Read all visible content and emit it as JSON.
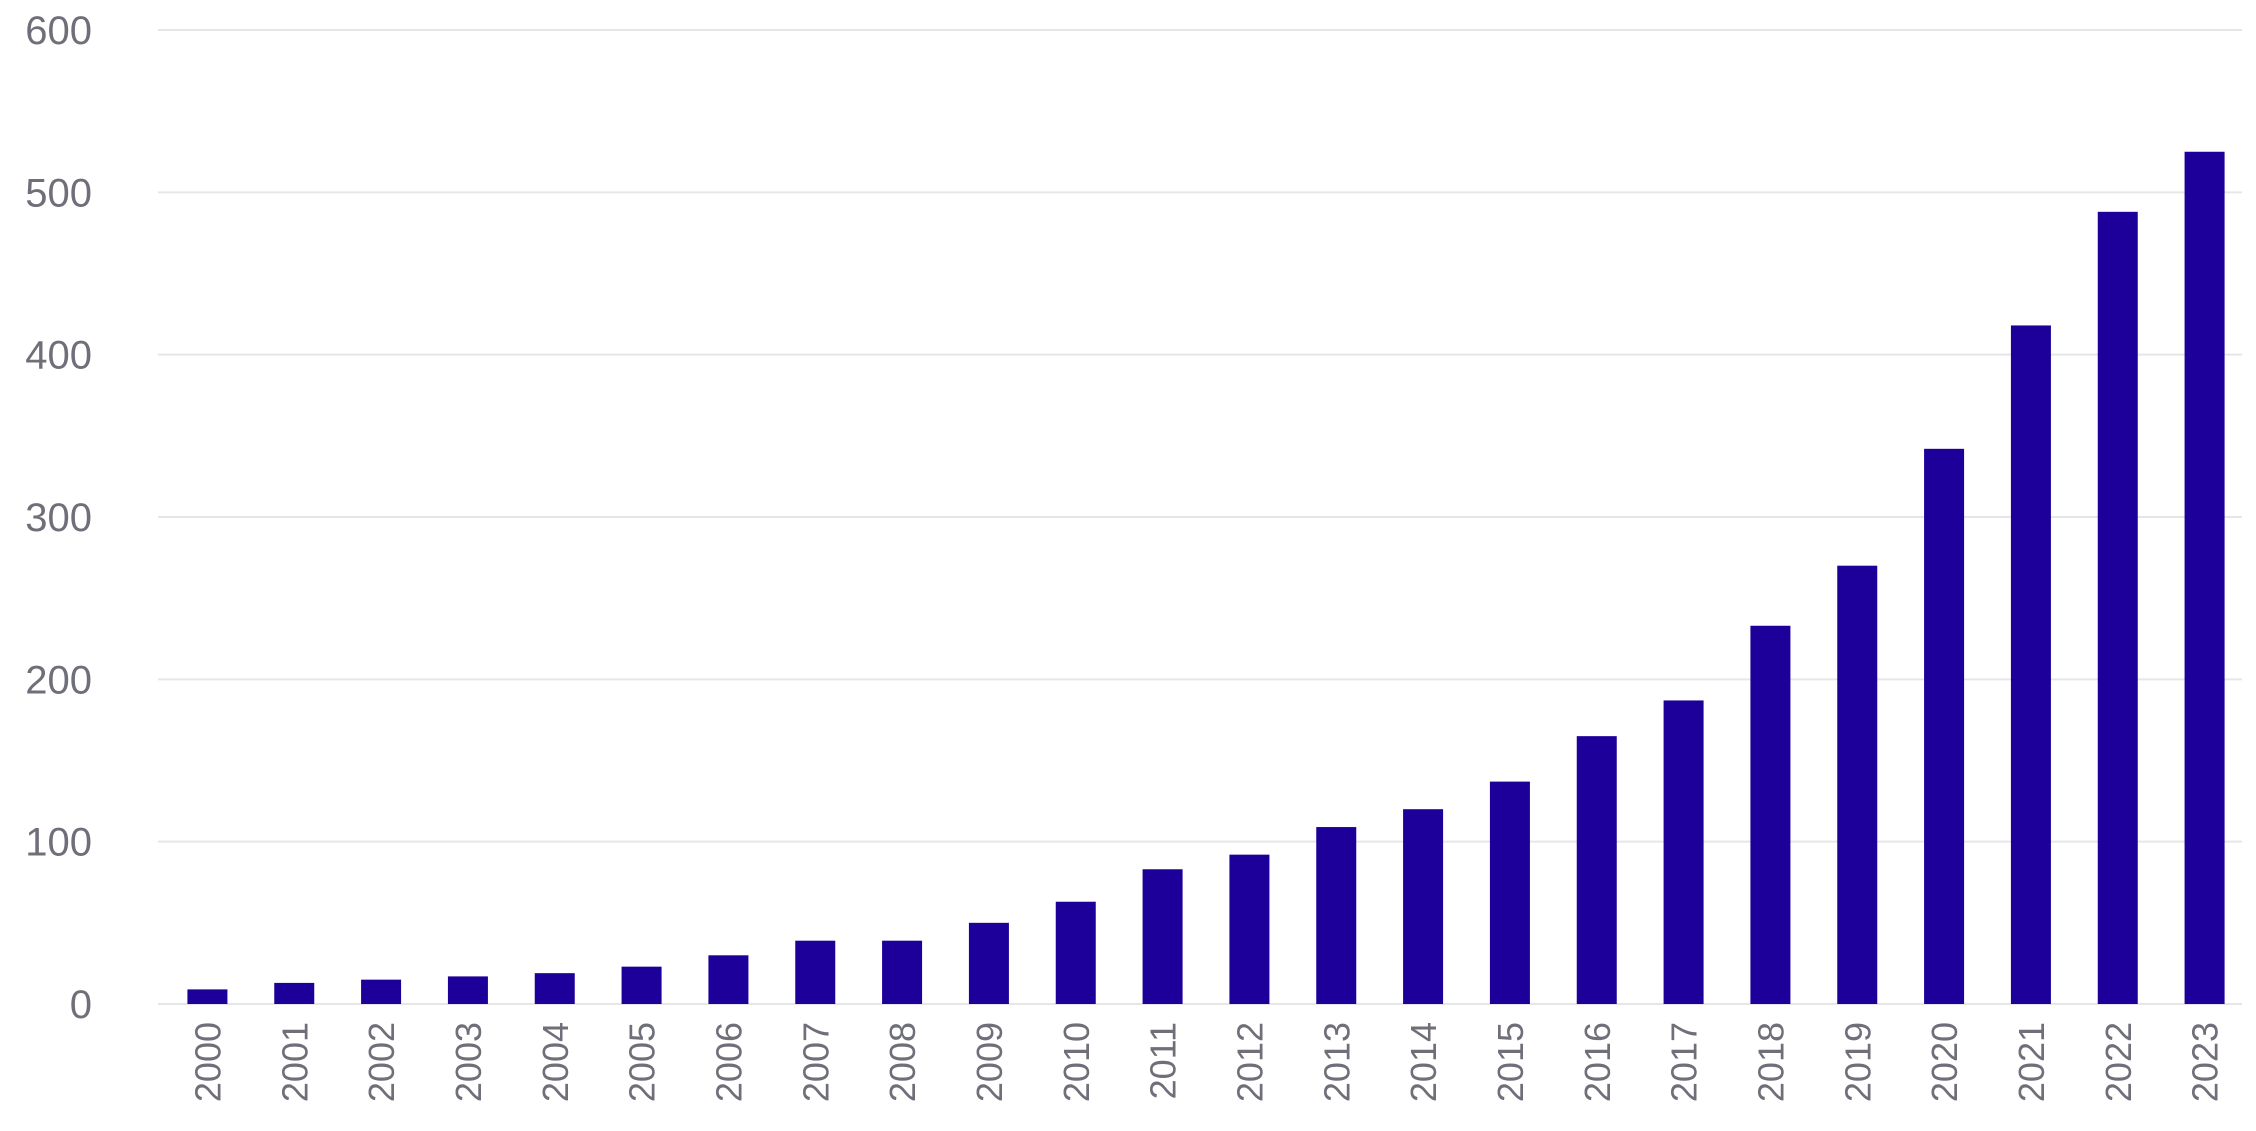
{
  "chart_data": {
    "type": "bar",
    "title": "",
    "xlabel": "",
    "ylabel": "",
    "categories": [
      "2000",
      "2001",
      "2002",
      "2003",
      "2004",
      "2005",
      "2006",
      "2007",
      "2008",
      "2009",
      "2010",
      "2011",
      "2012",
      "2013",
      "2014",
      "2015",
      "2016",
      "2017",
      "2018",
      "2019",
      "2020",
      "2021",
      "2022",
      "2023"
    ],
    "values": [
      9,
      13,
      15,
      17,
      19,
      23,
      30,
      39,
      39,
      50,
      63,
      83,
      92,
      109,
      120,
      137,
      165,
      187,
      233,
      270,
      342,
      418,
      488,
      525
    ],
    "ylim": [
      0,
      600
    ],
    "yticks": [
      "0",
      "100",
      "200",
      "300",
      "400",
      "500",
      "600"
    ],
    "grid": "horizontal",
    "legend": "none",
    "colors": {
      "bar": "#1c0099",
      "grid": "#e6e6ea",
      "tick_label": "#6f6f7a"
    }
  }
}
